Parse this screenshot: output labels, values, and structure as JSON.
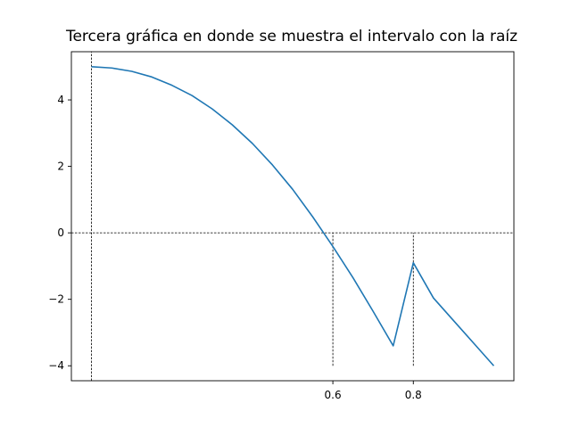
{
  "chart_data": {
    "type": "line",
    "title": "Tercera gráfica en donde se muestra el intervalo con la raíz",
    "xlabel": "",
    "ylabel": "",
    "xlim": [
      -0.05,
      1.05
    ],
    "ylim": [
      -4.45,
      5.45
    ],
    "grid": false,
    "x_ticks": [
      {
        "value": 0.6,
        "label": "0.6"
      },
      {
        "value": 0.8,
        "label": "0.8"
      }
    ],
    "y_ticks": [
      {
        "value": 4,
        "label": "4"
      },
      {
        "value": 2,
        "label": "2"
      },
      {
        "value": 0,
        "label": "0"
      },
      {
        "value": -2,
        "label": "−2"
      },
      {
        "value": -4,
        "label": "−4"
      }
    ],
    "series": [
      {
        "color": "#1f77b4",
        "x": [
          0.0,
          0.05,
          0.1,
          0.15,
          0.2,
          0.25,
          0.3,
          0.35,
          0.4,
          0.45,
          0.5,
          0.55,
          0.6,
          0.65,
          0.7,
          0.75,
          0.8,
          0.85,
          0.9,
          0.95,
          1.0
        ],
        "y": [
          5.0,
          4.96,
          4.86,
          4.69,
          4.44,
          4.13,
          3.73,
          3.25,
          2.69,
          2.04,
          1.31,
          0.48,
          -0.41,
          -1.35,
          -2.36,
          -3.4,
          -0.9,
          -1.96,
          -2.64,
          -3.32,
          -4.0
        ]
      }
    ],
    "reference_lines": [
      {
        "orientation": "horizontal",
        "value": 0,
        "style": "dashed",
        "color": "#000000"
      },
      {
        "orientation": "vertical",
        "value": 0.0,
        "style": "dashed",
        "color": "#000000",
        "from": "axis-bottom",
        "to": "axis-top"
      },
      {
        "orientation": "vertical",
        "value": 0.6,
        "style": "dashed",
        "color": "#000000",
        "from_y": -4,
        "to_y": 0
      },
      {
        "orientation": "vertical",
        "value": 0.8,
        "style": "dashed",
        "color": "#000000",
        "from_y": -4,
        "to_y": 0
      }
    ]
  }
}
